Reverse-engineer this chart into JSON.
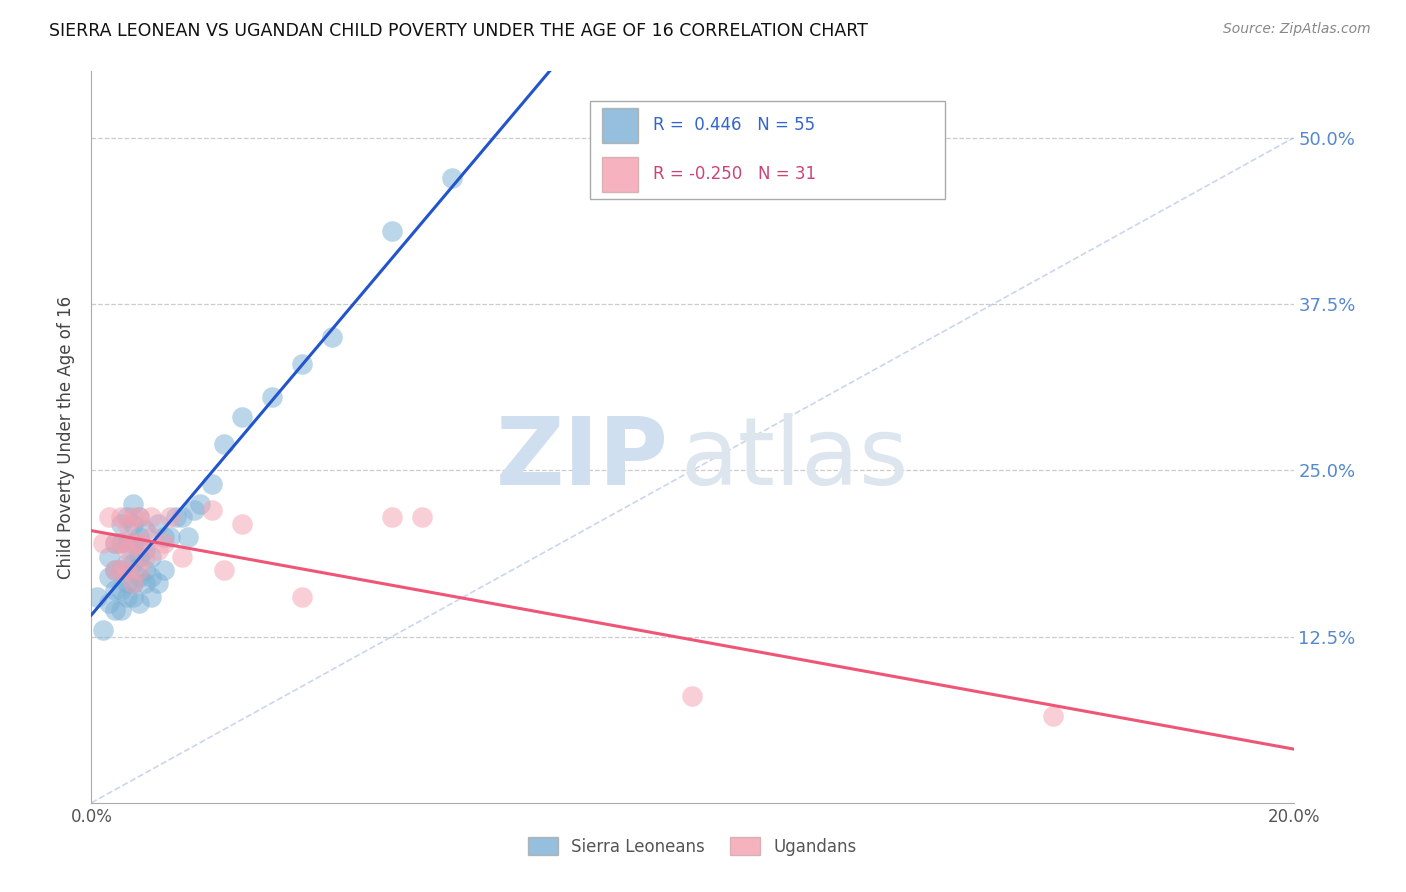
{
  "title": "SIERRA LEONEAN VS UGANDAN CHILD POVERTY UNDER THE AGE OF 16 CORRELATION CHART",
  "source": "Source: ZipAtlas.com",
  "ylabel": "Child Poverty Under the Age of 16",
  "ytick_labels": [
    "50.0%",
    "37.5%",
    "25.0%",
    "12.5%"
  ],
  "ytick_values": [
    0.5,
    0.375,
    0.25,
    0.125
  ],
  "xlim": [
    0.0,
    0.2
  ],
  "ylim": [
    0.0,
    0.55
  ],
  "sierra_color": "#7bafd4",
  "uganda_color": "#f4a0b0",
  "trend_blue": "#2255cc",
  "trend_pink": "#ee5577",
  "legend_blue_color": "#3366cc",
  "legend_pink_color": "#cc4477",
  "sierra_x": [
    0.001,
    0.002,
    0.003,
    0.003,
    0.003,
    0.004,
    0.004,
    0.004,
    0.004,
    0.005,
    0.005,
    0.005,
    0.005,
    0.005,
    0.006,
    0.006,
    0.006,
    0.006,
    0.006,
    0.007,
    0.007,
    0.007,
    0.007,
    0.007,
    0.007,
    0.008,
    0.008,
    0.008,
    0.008,
    0.008,
    0.009,
    0.009,
    0.009,
    0.009,
    0.01,
    0.01,
    0.01,
    0.011,
    0.011,
    0.012,
    0.012,
    0.013,
    0.014,
    0.015,
    0.016,
    0.017,
    0.018,
    0.02,
    0.022,
    0.025,
    0.03,
    0.035,
    0.04,
    0.05,
    0.06
  ],
  "sierra_y": [
    0.155,
    0.13,
    0.15,
    0.17,
    0.185,
    0.145,
    0.16,
    0.175,
    0.195,
    0.145,
    0.16,
    0.175,
    0.195,
    0.21,
    0.155,
    0.165,
    0.18,
    0.195,
    0.215,
    0.155,
    0.165,
    0.18,
    0.195,
    0.21,
    0.225,
    0.15,
    0.17,
    0.185,
    0.2,
    0.215,
    0.165,
    0.175,
    0.19,
    0.205,
    0.155,
    0.17,
    0.185,
    0.165,
    0.21,
    0.175,
    0.2,
    0.2,
    0.215,
    0.215,
    0.2,
    0.22,
    0.225,
    0.24,
    0.27,
    0.29,
    0.305,
    0.33,
    0.35,
    0.43,
    0.47
  ],
  "ugandan_x": [
    0.002,
    0.003,
    0.004,
    0.004,
    0.005,
    0.005,
    0.005,
    0.006,
    0.006,
    0.006,
    0.007,
    0.007,
    0.007,
    0.008,
    0.008,
    0.008,
    0.009,
    0.01,
    0.01,
    0.011,
    0.012,
    0.013,
    0.015,
    0.02,
    0.022,
    0.025,
    0.035,
    0.05,
    0.055,
    0.1,
    0.16
  ],
  "ugandan_y": [
    0.195,
    0.215,
    0.175,
    0.195,
    0.175,
    0.195,
    0.215,
    0.175,
    0.19,
    0.21,
    0.195,
    0.165,
    0.215,
    0.175,
    0.195,
    0.215,
    0.185,
    0.2,
    0.215,
    0.19,
    0.195,
    0.215,
    0.185,
    0.22,
    0.175,
    0.21,
    0.155,
    0.215,
    0.215,
    0.08,
    0.065
  ],
  "marker_size": 220,
  "marker_alpha": 0.5
}
